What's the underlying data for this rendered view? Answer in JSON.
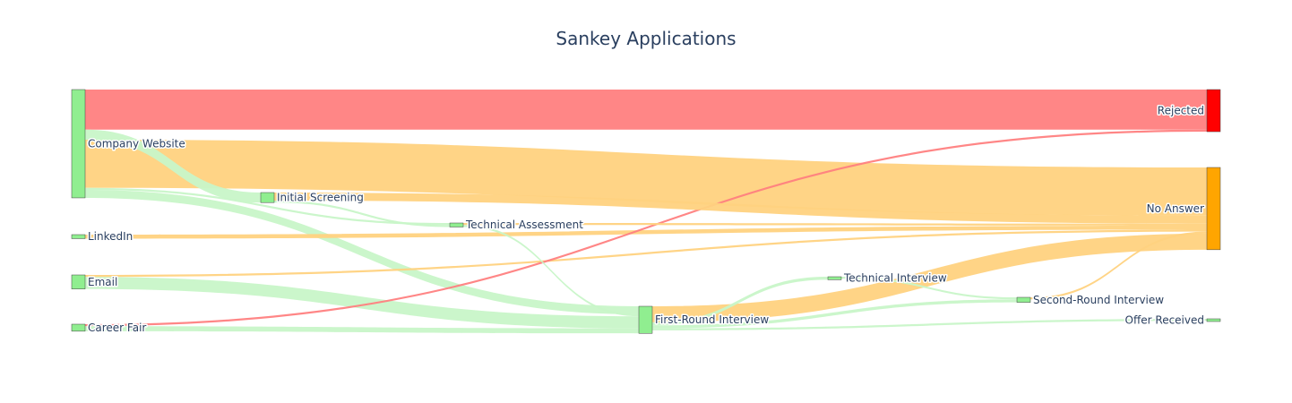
{
  "chart_data": {
    "type": "sankey",
    "title": "Sankey Applications",
    "nodes": [
      {
        "id": "company_website",
        "label": "Company Website",
        "color": "#90ee90"
      },
      {
        "id": "linkedin",
        "label": "LinkedIn",
        "color": "#90ee90"
      },
      {
        "id": "email",
        "label": "Email",
        "color": "#90ee90"
      },
      {
        "id": "career_fair",
        "label": "Career Fair",
        "color": "#90ee90"
      },
      {
        "id": "initial_screening",
        "label": "Initial Screening",
        "color": "#90ee90"
      },
      {
        "id": "technical_assessment",
        "label": "Technical Assessment",
        "color": "#90ee90"
      },
      {
        "id": "first_round",
        "label": "First-Round Interview",
        "color": "#90ee90"
      },
      {
        "id": "technical_interview",
        "label": "Technical Interview",
        "color": "#90ee90"
      },
      {
        "id": "second_round",
        "label": "Second-Round Interview",
        "color": "#90ee90"
      },
      {
        "id": "offer",
        "label": "Offer Received",
        "color": "#90ee90"
      },
      {
        "id": "rejected",
        "label": "Rejected",
        "color": "#ff0000"
      },
      {
        "id": "no_answer",
        "label": "No Answer",
        "color": "#ffa500"
      }
    ],
    "links": [
      {
        "source": "company_website",
        "target": "rejected",
        "value": 40,
        "color": "#ff8080"
      },
      {
        "source": "company_website",
        "target": "no_answer",
        "value": 48,
        "color": "#ffd280"
      },
      {
        "source": "company_website",
        "target": "initial_screening",
        "value": 10,
        "color": "#c8f5c8"
      },
      {
        "source": "company_website",
        "target": "technical_assessment",
        "value": 2,
        "color": "#c8f5c8"
      },
      {
        "source": "company_website",
        "target": "first_round",
        "value": 8,
        "color": "#c8f5c8"
      },
      {
        "source": "linkedin",
        "target": "no_answer",
        "value": 4,
        "color": "#ffd280"
      },
      {
        "source": "email",
        "target": "no_answer",
        "value": 2,
        "color": "#ffd280"
      },
      {
        "source": "email",
        "target": "first_round",
        "value": 12,
        "color": "#c8f5c8"
      },
      {
        "source": "career_fair",
        "target": "rejected",
        "value": 2,
        "color": "#ff8080"
      },
      {
        "source": "career_fair",
        "target": "first_round",
        "value": 5,
        "color": "#c8f5c8"
      },
      {
        "source": "initial_screening",
        "target": "no_answer",
        "value": 8,
        "color": "#ffd280"
      },
      {
        "source": "initial_screening",
        "target": "technical_assessment",
        "value": 2,
        "color": "#c8f5c8"
      },
      {
        "source": "technical_assessment",
        "target": "no_answer",
        "value": 2,
        "color": "#ffd280"
      },
      {
        "source": "technical_assessment",
        "target": "first_round",
        "value": 2,
        "color": "#c8f5c8"
      },
      {
        "source": "first_round",
        "target": "no_answer",
        "value": 16,
        "color": "#ffd280"
      },
      {
        "source": "first_round",
        "target": "technical_interview",
        "value": 3,
        "color": "#c8f5c8"
      },
      {
        "source": "first_round",
        "target": "second_round",
        "value": 3,
        "color": "#c8f5c8"
      },
      {
        "source": "first_round",
        "target": "offer",
        "value": 2,
        "color": "#c8f5c8"
      },
      {
        "source": "technical_interview",
        "target": "second_round",
        "value": 2,
        "color": "#c8f5c8"
      },
      {
        "source": "second_round",
        "target": "no_answer",
        "value": 2,
        "color": "#ffd280"
      }
    ]
  }
}
